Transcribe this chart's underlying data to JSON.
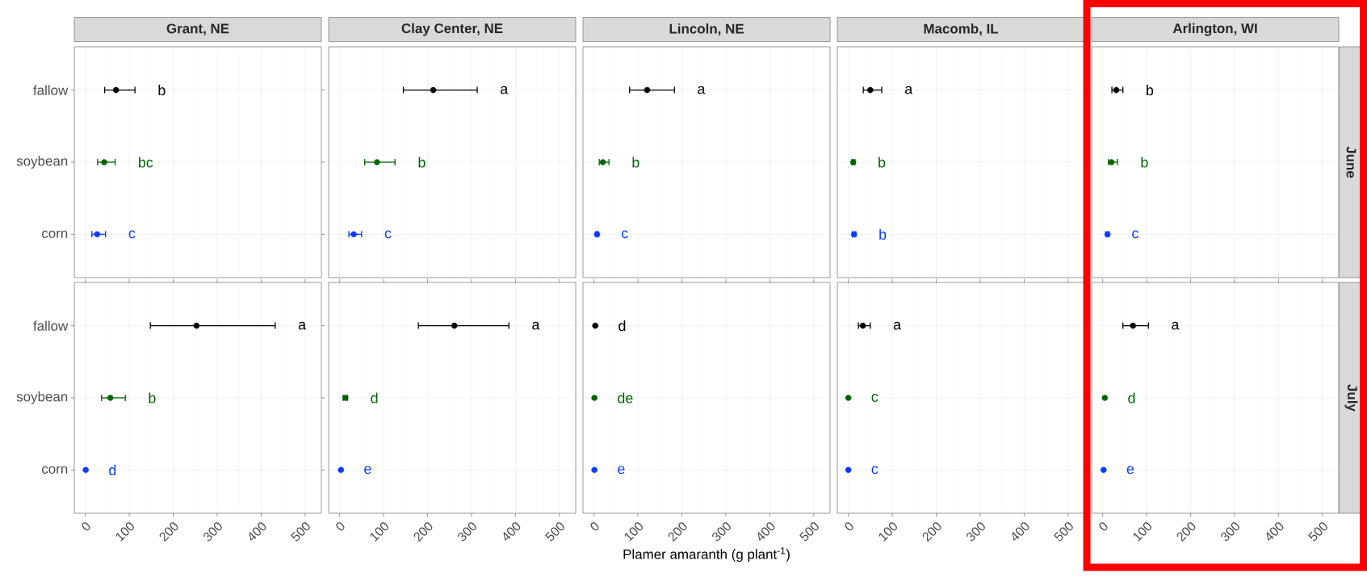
{
  "chart_data": [
    {
      "type": "scatter",
      "orientation": "horizontal",
      "title": "Grant, NE",
      "categories": [
        "fallow",
        "soybean",
        "corn"
      ],
      "values": [
        70,
        43,
        27
      ],
      "colors": [
        "#000000",
        "#006400",
        "#0a3cff"
      ],
      "errors": [
        [
          44,
          113
        ],
        [
          28,
          68
        ],
        [
          15,
          46
        ]
      ],
      "xlim": [
        -25,
        537
      ],
      "xticks": [
        0,
        100,
        200,
        300,
        400,
        500
      ],
      "grid": true,
      "tick_labels": "y",
      "annotations": [
        "b",
        "bc",
        "c"
      ]
    },
    {
      "type": "scatter",
      "orientation": "horizontal",
      "title": "Clay Center, NE",
      "categories": [
        null,
        null,
        null
      ],
      "values": [
        213,
        85,
        32
      ],
      "colors": [
        "#000000",
        "#006400",
        "#0a3cff"
      ],
      "errors": [
        [
          145,
          313
        ],
        [
          57,
          126
        ],
        [
          21,
          50
        ]
      ],
      "xlim": [
        -25,
        537
      ],
      "xticks": [
        0,
        100,
        200,
        300,
        400,
        500
      ],
      "grid": true,
      "tick_labels": false,
      "annotations": [
        "a",
        "b",
        "c"
      ]
    },
    {
      "type": "scatter",
      "orientation": "horizontal",
      "title": "Lincoln, NE",
      "categories": [
        null,
        null,
        null
      ],
      "values": [
        121,
        20,
        7
      ],
      "colors": [
        "#000000",
        "#006400",
        "#0a3cff"
      ],
      "errors": [
        [
          81,
          183
        ],
        [
          12,
          34
        ],
        [
          4,
          10
        ]
      ],
      "xlim": [
        -25,
        537
      ],
      "xticks": [
        0,
        100,
        200,
        300,
        400,
        500
      ],
      "grid": true,
      "tick_labels": false,
      "annotations": [
        "a",
        "b",
        "c"
      ]
    },
    {
      "type": "scatter",
      "orientation": "horizontal",
      "title": "Macomb, IL",
      "categories": [
        null,
        null,
        null
      ],
      "values": [
        50,
        11,
        13
      ],
      "colors": [
        "#000000",
        "#006400",
        "#0a3cff"
      ],
      "errors": [
        [
          34,
          76
        ],
        [
          8,
          15
        ],
        [
          9,
          17
        ]
      ],
      "xlim": [
        -25,
        537
      ],
      "xticks": [
        0,
        100,
        200,
        300,
        400,
        500
      ],
      "grid": true,
      "tick_labels": false,
      "annotations": [
        "a",
        "b",
        "b"
      ]
    },
    {
      "type": "scatter",
      "orientation": "horizontal",
      "title": "Arlington, WI",
      "y2label": "June",
      "categories": [
        null,
        null,
        null
      ],
      "values": [
        31,
        20,
        11
      ],
      "colors": [
        "#000000",
        "#006400",
        "#0a3cff"
      ],
      "errors": [
        [
          21,
          46
        ],
        [
          13,
          34
        ],
        [
          7,
          14
        ]
      ],
      "xlim": [
        -25,
        537
      ],
      "xticks": [
        0,
        100,
        200,
        300,
        400,
        500
      ],
      "grid": true,
      "tick_labels": false,
      "annotations": [
        "b",
        "b",
        "c"
      ]
    },
    {
      "type": "scatter",
      "orientation": "horizontal",
      "categories": [
        "fallow",
        "soybean",
        "corn"
      ],
      "values": [
        253,
        57,
        1
      ],
      "colors": [
        "#000000",
        "#006400",
        "#0a3cff"
      ],
      "errors": [
        [
          148,
          432
        ],
        [
          37,
          91
        ],
        null
      ],
      "xlim": [
        -25,
        537
      ],
      "xticks": [
        0,
        100,
        200,
        300,
        400,
        500
      ],
      "grid": true,
      "annotations": [
        "a",
        "b",
        "d"
      ]
    },
    {
      "type": "scatter",
      "orientation": "horizontal",
      "categories": [
        null,
        null,
        null
      ],
      "values": [
        261,
        13,
        3
      ],
      "colors": [
        "#000000",
        "#006400",
        "#0a3cff"
      ],
      "errors": [
        [
          179,
          385
        ],
        [
          8,
          18
        ],
        null
      ],
      "xlim": [
        -25,
        537
      ],
      "xticks": [
        0,
        100,
        200,
        300,
        400,
        500
      ],
      "grid": true,
      "tick_labels": "x",
      "annotations": [
        "a",
        "d",
        "e"
      ]
    },
    {
      "type": "scatter",
      "orientation": "horizontal",
      "xlabel": "Plamer amaranth (g plant$^{-1}$)",
      "categories": [
        null,
        null,
        null
      ],
      "values": [
        3,
        1,
        1
      ],
      "colors": [
        "#000000",
        "#006400",
        "#0a3cff"
      ],
      "xlim": [
        -25,
        537
      ],
      "xticks": [
        0,
        100,
        200,
        300,
        400,
        500
      ],
      "grid": true,
      "tick_labels": "x",
      "annotations": [
        "d",
        "de",
        "e"
      ]
    },
    {
      "type": "scatter",
      "orientation": "horizontal",
      "categories": [
        null,
        null,
        null
      ],
      "values": [
        33,
        0,
        0
      ],
      "colors": [
        "#000000",
        "#006400",
        "#0a3cff"
      ],
      "errors": [
        [
          23,
          50
        ],
        null,
        null
      ],
      "xlim": [
        -25,
        537
      ],
      "xticks": [
        0,
        100,
        200,
        300,
        400,
        500
      ],
      "grid": true,
      "tick_labels": "x",
      "annotations": [
        "a",
        "c",
        "c"
      ]
    },
    {
      "type": "scatter",
      "orientation": "horizontal",
      "y2label": "July",
      "categories": [
        null,
        null,
        null
      ],
      "values": [
        69,
        5,
        2
      ],
      "colors": [
        "#000000",
        "#006400",
        "#0a3cff"
      ],
      "errors": [
        [
          46,
          104
        ],
        null,
        null
      ],
      "xlim": [
        -25,
        537
      ],
      "xticks": [
        0,
        100,
        200,
        300,
        400,
        500
      ],
      "grid": true,
      "tick_labels": "x",
      "annotations": [
        "a",
        "d",
        "e"
      ]
    }
  ]
}
